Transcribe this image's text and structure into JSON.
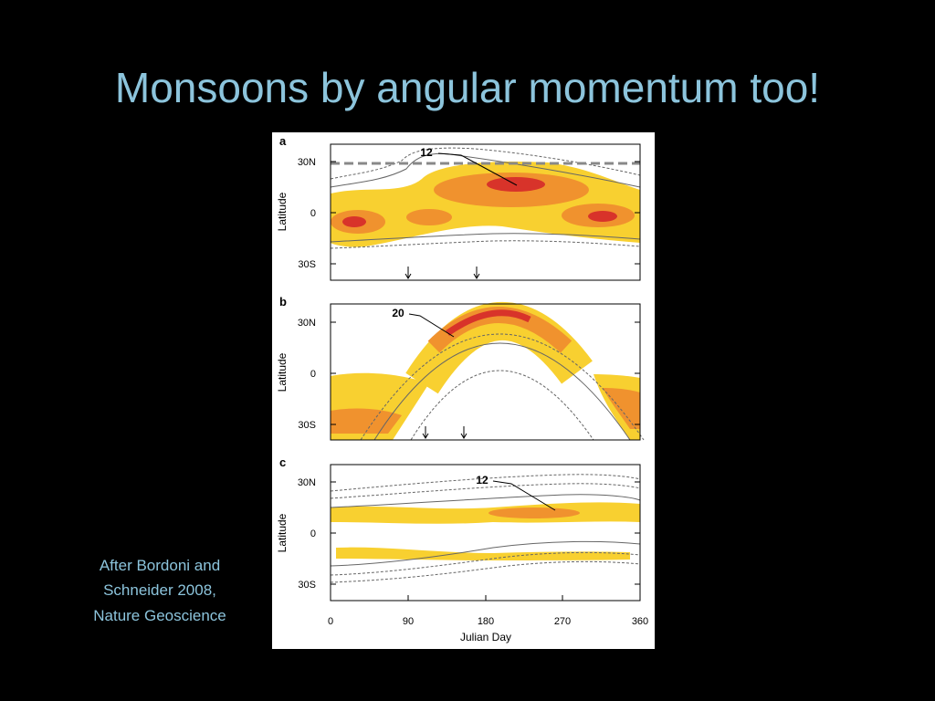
{
  "title": "Monsoons by angular momentum too!",
  "caption": [
    "After Bordoni and",
    "Schneider 2008,",
    "Nature Geoscience"
  ],
  "figure": {
    "panels": [
      {
        "label": "a",
        "y_axis_label": "Latitude",
        "y_ticks": [
          "30N",
          "0",
          "30S"
        ],
        "annotation": "12"
      },
      {
        "label": "b",
        "y_axis_label": "Latitude",
        "y_ticks": [
          "30N",
          "0",
          "30S"
        ],
        "annotation": "20"
      },
      {
        "label": "c",
        "y_axis_label": "Latitude",
        "y_ticks": [
          "30N",
          "0",
          "30S"
        ],
        "annotation": "12"
      }
    ],
    "x_ticks": [
      "0",
      "90",
      "180",
      "270",
      "360"
    ],
    "x_axis_label": "Julian Day"
  }
}
